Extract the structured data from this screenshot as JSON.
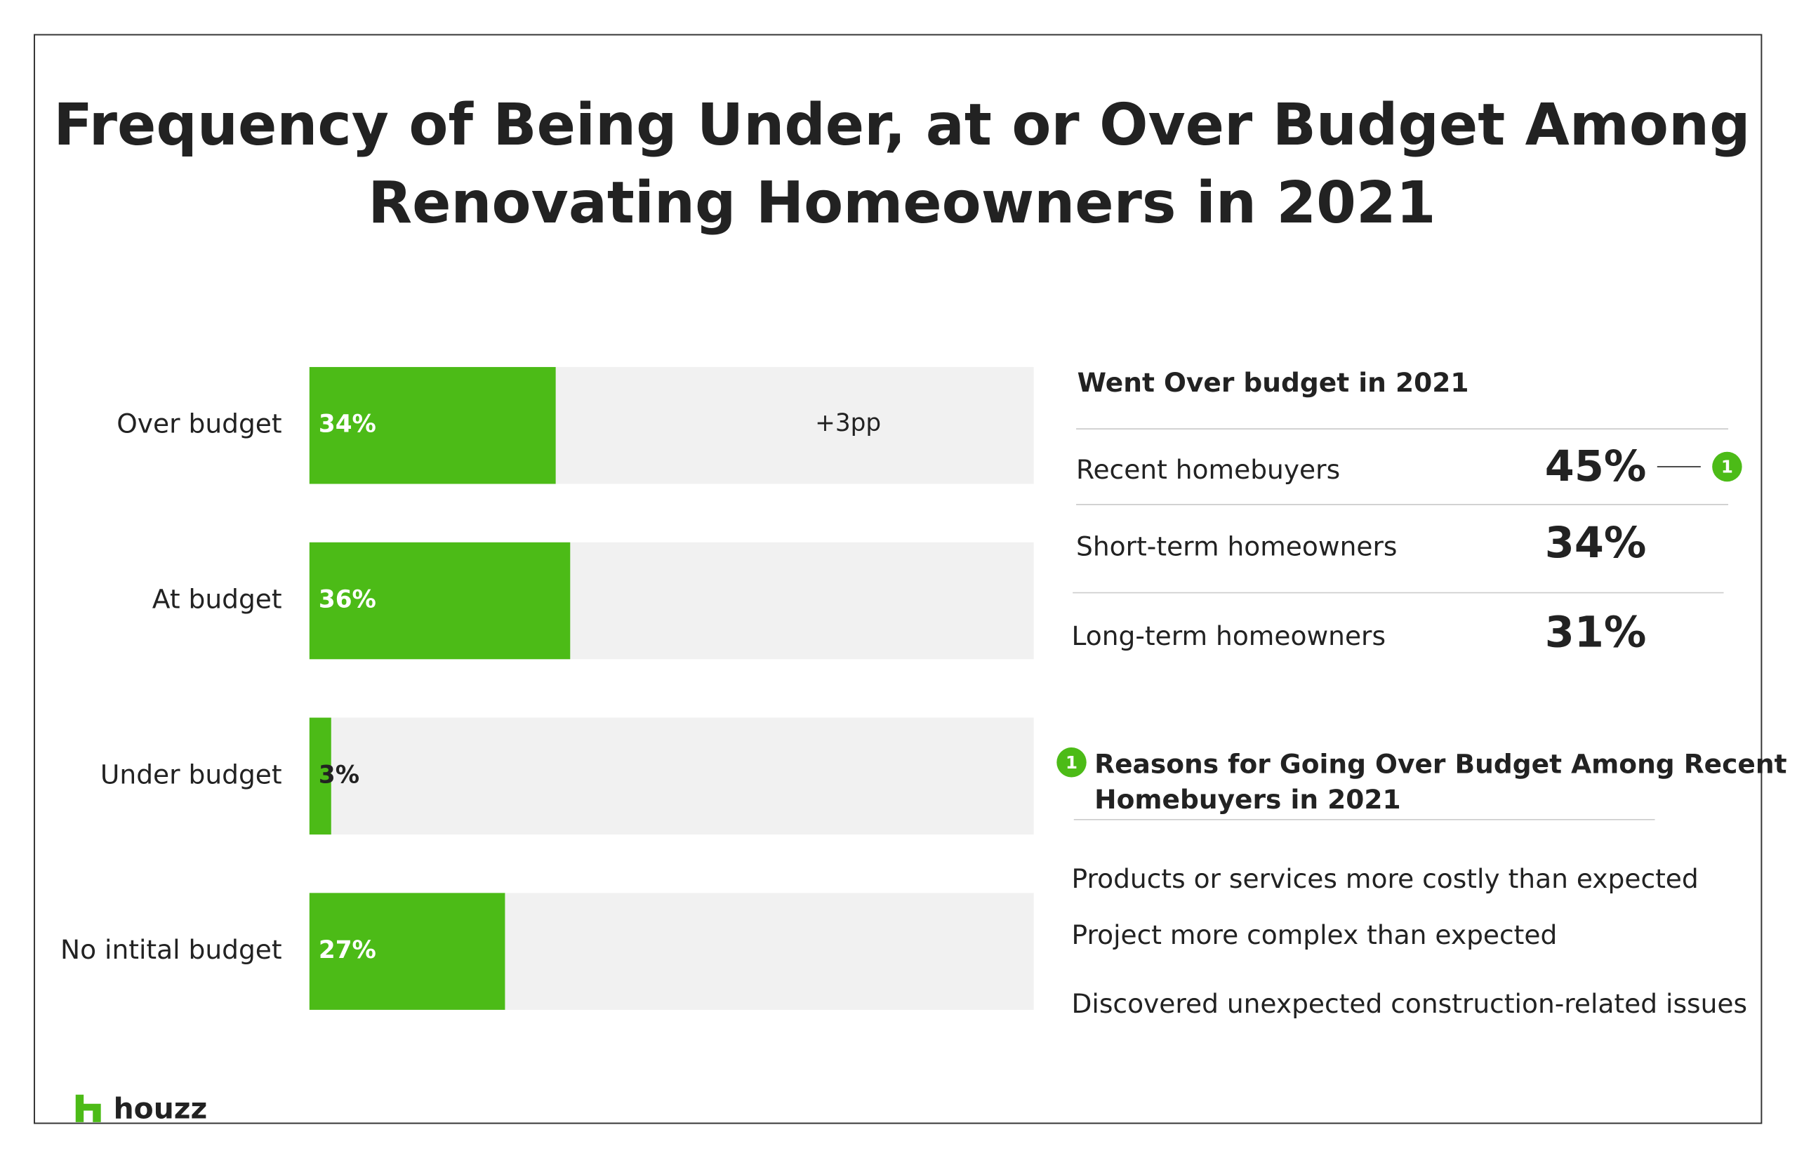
{
  "chart_data": {
    "type": "hbar",
    "title": [
      "Frequency of Being Under, at or Over Budget Among",
      "Renovating Homeowners in 2021"
    ],
    "categories": [
      "Over budget",
      "At budget",
      "Under budget",
      "No intital budget"
    ],
    "values": [
      34,
      36,
      3,
      27
    ],
    "value_labels": [
      "34%",
      "36%",
      "3%",
      "27%"
    ],
    "color": "#4cbb17",
    "xlim": [
      0,
      100
    ],
    "annotation": "+3pp"
  },
  "panel": {
    "heading": "Went Over budget in 2021",
    "rows": [
      [
        "Recent homebuyers",
        "45%"
      ],
      [
        "Short-term homeowners",
        "34%"
      ],
      [
        "Long-term homeowners",
        "31%"
      ]
    ],
    "marker": "1",
    "reasons_heading": [
      "Reasons for Going Over Budget Among Recent",
      "Homebuyers  in 2021"
    ],
    "reasons": [
      "Products or services more costly than expected",
      "Project more complex than expected",
      "Discovered unexpected construction-related issues"
    ]
  },
  "logo": "houzz"
}
